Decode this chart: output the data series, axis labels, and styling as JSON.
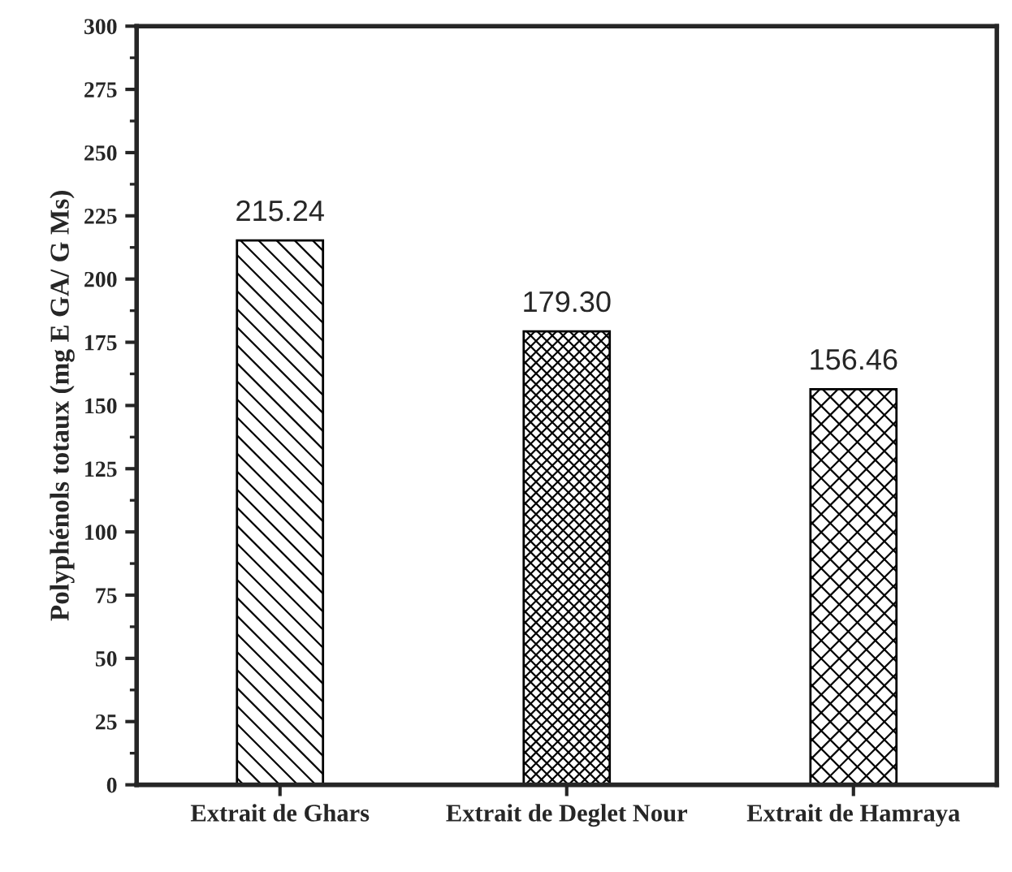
{
  "chart_data": {
    "type": "bar",
    "ylabel": "Polyphénols totaux (mg E GA/ G Ms)",
    "categories": [
      "Extrait de Ghars",
      "Extrait de Deglet Nour",
      "Extrait de Hamraya"
    ],
    "values": [
      215.24,
      179.3,
      156.46
    ],
    "value_labels": [
      "215.24",
      "179.30",
      "156.46"
    ],
    "color": "#000000",
    "ylim": [
      0,
      300
    ],
    "yticks": [
      0,
      25,
      50,
      75,
      100,
      125,
      150,
      175,
      200,
      225,
      250,
      275,
      300
    ],
    "grid": false
  }
}
